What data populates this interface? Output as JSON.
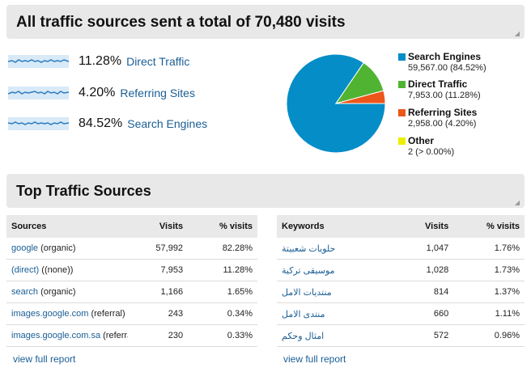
{
  "header1": {
    "title": "All traffic sources sent a total of 70,480 visits"
  },
  "header2": {
    "title": "Top Traffic Sources"
  },
  "sources": [
    {
      "percent": "11.28%",
      "name": "Direct Traffic"
    },
    {
      "percent": "4.20%",
      "name": "Referring Sites"
    },
    {
      "percent": "84.52%",
      "name": "Search Engines"
    }
  ],
  "chart_data": {
    "type": "pie",
    "slices": [
      {
        "name": "Search Engines",
        "value": 59567.0,
        "percent": 84.52,
        "color": "#058dc7",
        "label": "59,567.00 (84.52%)"
      },
      {
        "name": "Direct Traffic",
        "value": 7953.0,
        "percent": 11.28,
        "color": "#50b432",
        "label": "7,953.00 (11.28%)"
      },
      {
        "name": "Referring Sites",
        "value": 2958.0,
        "percent": 4.2,
        "color": "#ed561b",
        "label": "2,958.00 (4.20%)"
      },
      {
        "name": "Other",
        "value": 2,
        "percent": 0.0,
        "color": "#edef00",
        "label": "2 (> 0.00%)"
      }
    ]
  },
  "sources_table": {
    "headers": [
      "Sources",
      "Visits",
      "% visits"
    ],
    "rows": [
      {
        "link": "google",
        "rest": " (organic)",
        "visits": "57,992",
        "pct": "82.28%"
      },
      {
        "link": "(direct)",
        "rest": " ((none))",
        "visits": "7,953",
        "pct": "11.28%"
      },
      {
        "link": "search",
        "rest": " (organic)",
        "visits": "1,166",
        "pct": "1.65%"
      },
      {
        "link": "images.google.com",
        "rest": " (referral)",
        "visits": "243",
        "pct": "0.34%"
      },
      {
        "link": "images.google.com.sa",
        "rest": " (referral)",
        "visits": "230",
        "pct": "0.33%"
      }
    ],
    "view_full_report": "view full report"
  },
  "keywords_table": {
    "headers": [
      "Keywords",
      "Visits",
      "% visits"
    ],
    "rows": [
      {
        "keyword": "حلويات شعبيتة",
        "visits": "1,047",
        "pct": "1.76%"
      },
      {
        "keyword": "موسيقى تركية",
        "visits": "1,028",
        "pct": "1.73%"
      },
      {
        "keyword": "منتديات الامل",
        "visits": "814",
        "pct": "1.37%"
      },
      {
        "keyword": "منتدى الامل",
        "visits": "660",
        "pct": "1.11%"
      },
      {
        "keyword": "امثال وحكم",
        "visits": "572",
        "pct": "0.96%"
      }
    ],
    "view_full_report": "view full report"
  }
}
